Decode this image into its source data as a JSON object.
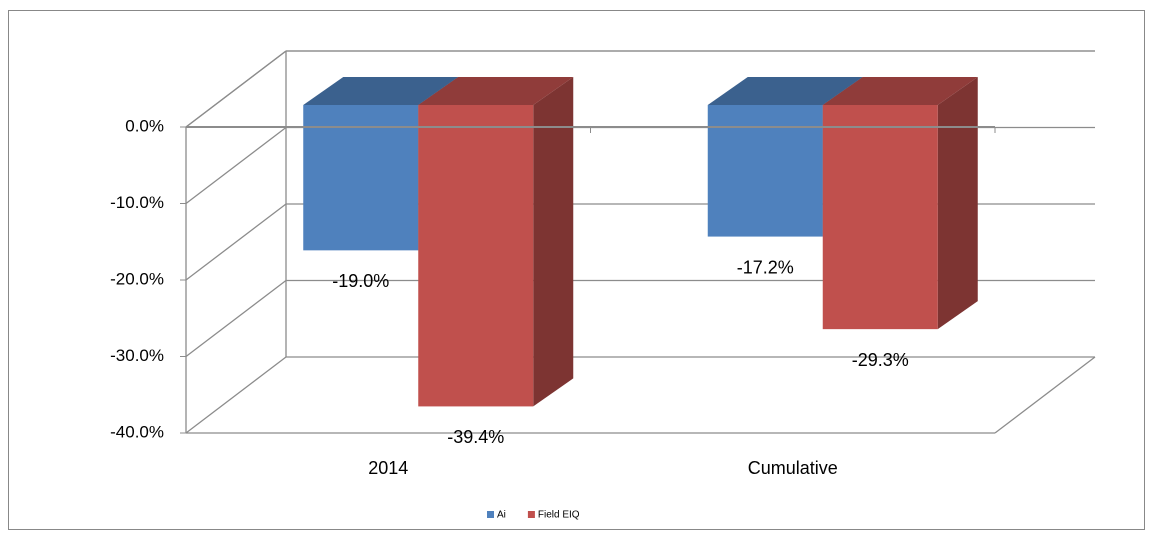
{
  "chart_data": {
    "type": "bar3d",
    "categories": [
      "2014",
      "Cumulative"
    ],
    "series": [
      {
        "name": "Ai",
        "color": "#4f81bd",
        "values": [
          -19.0,
          -17.2
        ],
        "value_labels": [
          "-19.0%",
          "-17.2%"
        ]
      },
      {
        "name": "Field EIQ",
        "color": "#c0504d",
        "values": [
          -39.4,
          -29.3
        ],
        "value_labels": [
          "-39.4%",
          "-29.3%"
        ]
      }
    ],
    "ylim": [
      -40,
      0
    ],
    "yticks": [
      {
        "value": 0,
        "label": "0.0%"
      },
      {
        "value": -10,
        "label": "-10.0%"
      },
      {
        "value": -20,
        "label": "-20.0%"
      },
      {
        "value": -30,
        "label": "-30.0%"
      },
      {
        "value": -40,
        "label": "-40.0%"
      }
    ],
    "grid": true,
    "legend": "bottom"
  }
}
